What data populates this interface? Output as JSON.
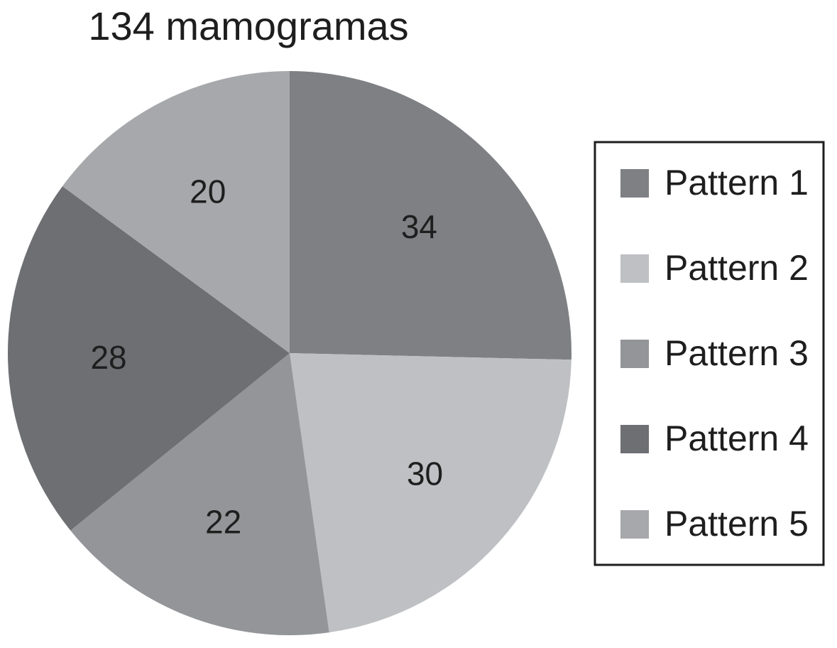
{
  "chart_data": {
    "type": "pie",
    "title": "134 mamogramas",
    "slices": [
      {
        "label": "Pattern 1",
        "value": 34,
        "color": "#7e8084"
      },
      {
        "label": "Pattern 2",
        "value": 30,
        "color": "#bfc0c3"
      },
      {
        "label": "Pattern 3",
        "value": 22,
        "color": "#939598"
      },
      {
        "label": "Pattern 4",
        "value": 28,
        "color": "#6e6f73"
      },
      {
        "label": "Pattern 5",
        "value": 20,
        "color": "#a7a8ab"
      }
    ],
    "legend_position": "right",
    "start": "12 o'clock",
    "direction": "clockwise"
  }
}
